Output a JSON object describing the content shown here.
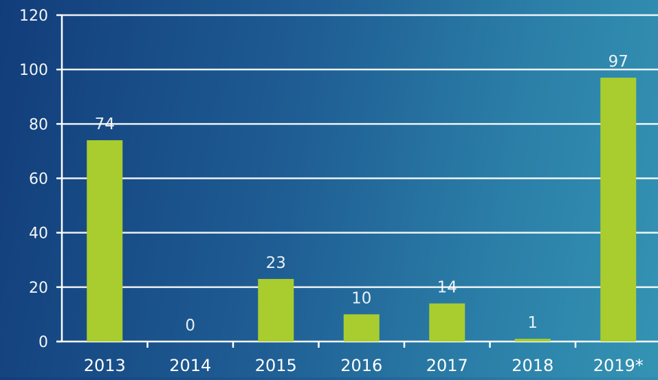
{
  "chart_data": {
    "type": "bar",
    "categories": [
      "2013",
      "2014",
      "2015",
      "2016",
      "2017",
      "2018",
      "2019*"
    ],
    "values": [
      74,
      0,
      23,
      10,
      14,
      1,
      97
    ],
    "data_labels": [
      "74",
      "0",
      "23",
      "10",
      "14",
      "1",
      "97"
    ],
    "y_ticks": [
      0,
      20,
      40,
      60,
      80,
      100,
      120
    ],
    "ylim": [
      0,
      120
    ],
    "grid": true,
    "legend": "none",
    "colors": {
      "bar": "#a9cd2f",
      "grid": "#ffffff",
      "label": "#ffffff",
      "background_start": "#123d7a",
      "background_end": "#3493b3"
    }
  }
}
